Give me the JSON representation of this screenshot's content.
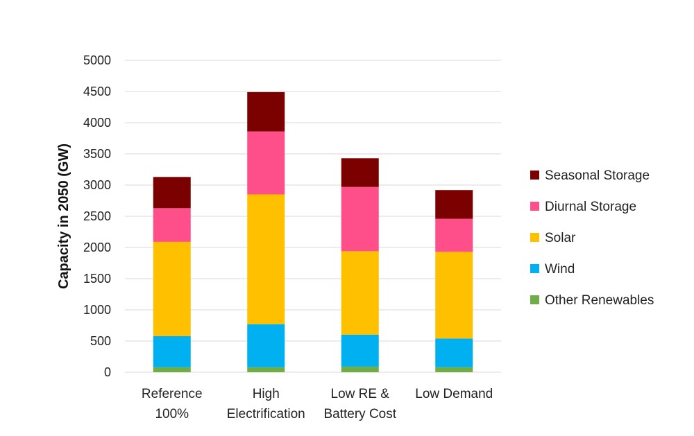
{
  "chart_data": {
    "type": "bar",
    "stacked": true,
    "title": "",
    "xlabel": "",
    "ylabel": "Capacity in 2050 (GW)",
    "ylim": [
      0,
      5000
    ],
    "yticks": [
      0,
      500,
      1000,
      1500,
      2000,
      2500,
      3000,
      3500,
      4000,
      4500,
      5000
    ],
    "grid": true,
    "legend_position": "right",
    "categories": [
      [
        "Reference",
        "100%"
      ],
      [
        "High",
        "Electrification"
      ],
      [
        "Low RE &",
        "Battery Cost"
      ],
      [
        "Low Demand"
      ]
    ],
    "series": [
      {
        "name": "Other Renewables",
        "color": "#70ad47",
        "values": [
          80,
          80,
          90,
          80
        ]
      },
      {
        "name": "Wind",
        "color": "#00b0f0",
        "values": [
          500,
          690,
          510,
          460
        ]
      },
      {
        "name": "Solar",
        "color": "#ffc000",
        "values": [
          1510,
          2080,
          1340,
          1390
        ]
      },
      {
        "name": "Diurnal Storage",
        "color": "#ff4f8b",
        "values": [
          540,
          1010,
          1030,
          530
        ]
      },
      {
        "name": "Seasonal Storage",
        "color": "#7b0000",
        "values": [
          500,
          630,
          460,
          460
        ]
      }
    ]
  }
}
